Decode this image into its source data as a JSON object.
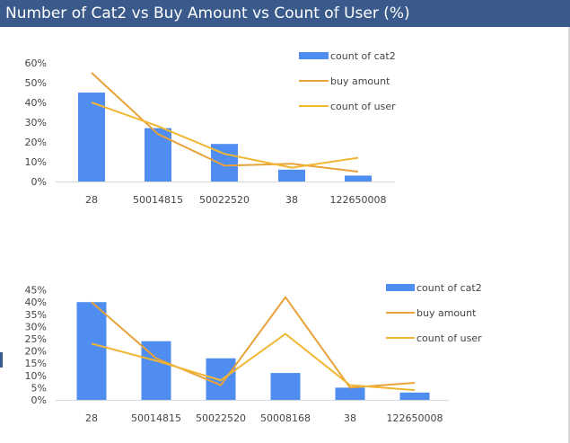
{
  "title": "Number of Cat2 vs Buy Amount vs Count of User (%)",
  "colors": {
    "title_bg": "#3a5a8c",
    "title_text": "#ffffff",
    "bar": "#4f8df0",
    "buy_amount": "#e8a23a",
    "count_of_user": "#f0b733",
    "axis": "#d9d9d9",
    "text": "#444444"
  },
  "chart_data": [
    {
      "type": "bar",
      "categories": [
        "28",
        "50014815",
        "50022520",
        "38",
        "122650008"
      ],
      "series": [
        {
          "name": "count of cat2",
          "type": "bar",
          "values": [
            45,
            27,
            19,
            6,
            3
          ]
        },
        {
          "name": "buy amount",
          "type": "line",
          "values": [
            55,
            24,
            8,
            9,
            5
          ]
        },
        {
          "name": "count of user",
          "type": "line",
          "values": [
            40,
            28,
            14,
            7,
            12
          ]
        }
      ],
      "ylim": [
        0,
        60
      ],
      "yticks": [
        "0%",
        "10%",
        "20%",
        "30%",
        "40%",
        "50%",
        "60%"
      ],
      "grid": false,
      "legend": "top-right"
    },
    {
      "type": "bar",
      "categories": [
        "28",
        "50014815",
        "50022520",
        "50008168",
        "38",
        "122650008"
      ],
      "series": [
        {
          "name": "count of cat2",
          "type": "bar",
          "values": [
            40,
            24,
            17,
            11,
            5,
            3
          ]
        },
        {
          "name": "buy amount",
          "type": "line",
          "values": [
            40,
            17,
            6,
            42,
            5,
            7
          ]
        },
        {
          "name": "count of user",
          "type": "line",
          "values": [
            23,
            16,
            8,
            27,
            6,
            4
          ]
        }
      ],
      "ylim": [
        0,
        45
      ],
      "yticks": [
        "0%",
        "5%",
        "10%",
        "15%",
        "20%",
        "25%",
        "30%",
        "35%",
        "40%",
        "45%"
      ],
      "grid": false,
      "legend": "right"
    }
  ]
}
